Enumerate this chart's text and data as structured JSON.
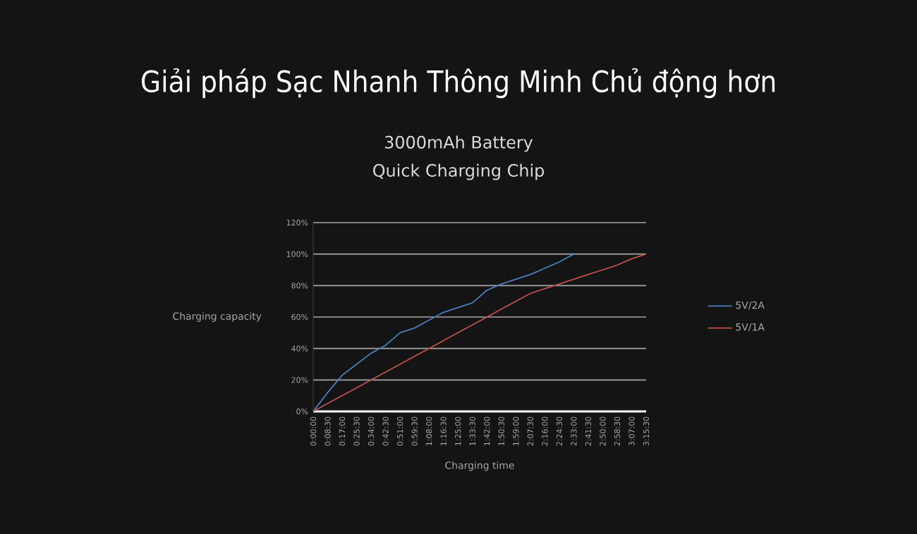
{
  "chart_data": {
    "type": "line",
    "title": "Giải pháp Sạc Nhanh Thông Minh Chủ động hơn",
    "subtitle": "3000mAh Battery",
    "annotations": [
      "Quick Charging Chip"
    ],
    "xlabel": "Charging time",
    "ylabel": "Charging capacity",
    "categories": [
      "0:00:00",
      "0:08:30",
      "0:17:00",
      "0:25:30",
      "0:34:00",
      "0:42:30",
      "0:51:00",
      "0:59:30",
      "1:08:00",
      "1:16:30",
      "1:25:00",
      "1:33:30",
      "1:42:00",
      "1:50:30",
      "1:59:00",
      "2:07:30",
      "2:16:00",
      "2:24:30",
      "2:33:00",
      "2:41:30",
      "2:50:00",
      "2:58:30",
      "3:07:00",
      "3:15:30"
    ],
    "series": [
      {
        "name": "5V/2A",
        "color": "#4a7ebb",
        "values": [
          0,
          12,
          23,
          30,
          37,
          42,
          50,
          53,
          58,
          63,
          66,
          69,
          77,
          81,
          84,
          87,
          91,
          95,
          100,
          null,
          null,
          null,
          null,
          null
        ]
      },
      {
        "name": "5V/1A",
        "color": "#c0504d",
        "values": [
          0,
          5,
          10,
          15,
          20,
          25,
          30,
          35,
          40,
          45,
          50,
          55,
          60,
          65,
          70,
          75,
          78,
          81,
          84,
          87,
          90,
          93,
          97,
          100
        ]
      }
    ],
    "ylim": [
      0,
      120
    ],
    "yticks": [
      {
        "value": 0,
        "label": "0%"
      },
      {
        "value": 20,
        "label": "20%"
      },
      {
        "value": 40,
        "label": "40%"
      },
      {
        "value": 60,
        "label": "60%"
      },
      {
        "value": 80,
        "label": "80%"
      },
      {
        "value": 100,
        "label": "100%"
      },
      {
        "value": 120,
        "label": "120%"
      }
    ],
    "grid": "y",
    "legend": "right",
    "marker": "none",
    "line_style": "solid"
  }
}
